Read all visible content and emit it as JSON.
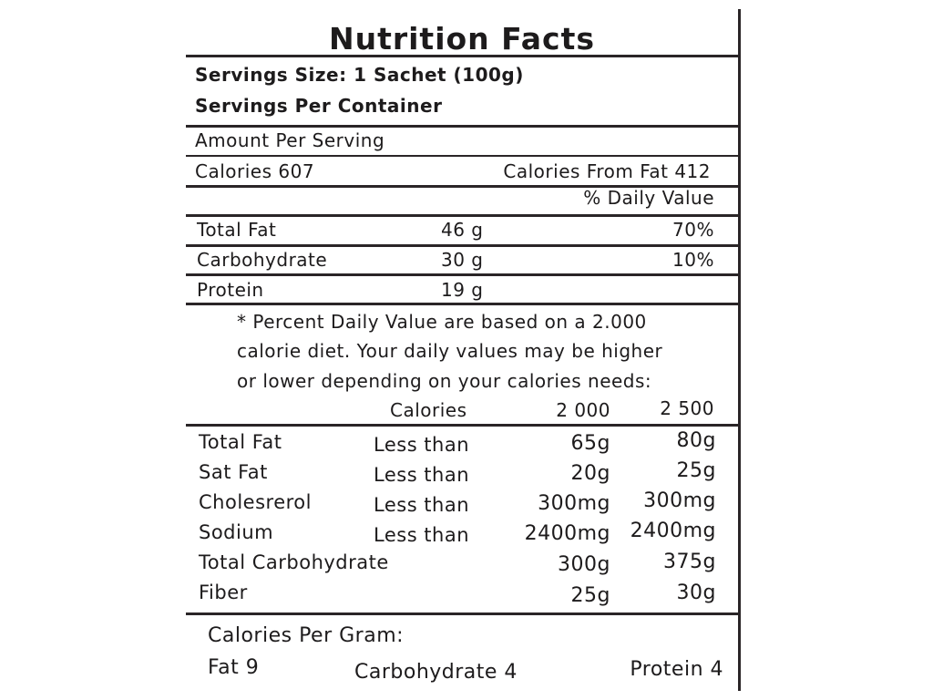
{
  "title": "Nutrition Facts",
  "serving_size": "Servings Size: 1 Sachet (100g)",
  "servings_per_container": "Servings Per Container",
  "amount_per_serving": "Amount Per Serving",
  "calories": "Calories 607",
  "calories_from_fat": "Calories From Fat 412",
  "daily_value_header": "% Daily Value",
  "nutrients": [
    {
      "name": "Total Fat",
      "amount": "46 g",
      "dv": "70%"
    },
    {
      "name": "Carbohydrate",
      "amount": "30 g",
      "dv": "10%"
    },
    {
      "name": "Protein",
      "amount": "19 g",
      "dv": ""
    }
  ],
  "footnote": [
    "* Percent Daily Value are based on a 2.000",
    "calorie diet. Your daily values may be higher",
    "or lower depending on your calories needs:"
  ],
  "dv_table": {
    "header": {
      "calories": "Calories",
      "col1": "2 000",
      "col2": "2 500"
    },
    "rows": [
      {
        "name": "Total Fat",
        "qualifier": "Less than",
        "v1": "65g",
        "v2": "80g"
      },
      {
        "name": "Sat Fat",
        "qualifier": "Less than",
        "v1": "20g",
        "v2": "25g"
      },
      {
        "name": "Cholesrerol",
        "qualifier": "Less than",
        "v1": "300mg",
        "v2": "300mg"
      },
      {
        "name": "Sodium",
        "qualifier": "Less than",
        "v1": "2400mg",
        "v2": "2400mg"
      },
      {
        "name": "Total Carbohydrate",
        "qualifier": "",
        "v1": "300g",
        "v2": "375g"
      },
      {
        "name": "Fiber",
        "qualifier": "",
        "v1": "25g",
        "v2": "30g"
      }
    ]
  },
  "calories_per_gram": {
    "heading": "Calories Per Gram:",
    "fat": "Fat 9",
    "carbohydrate": "Carbohydrate 4",
    "protein": "Protein 4"
  }
}
